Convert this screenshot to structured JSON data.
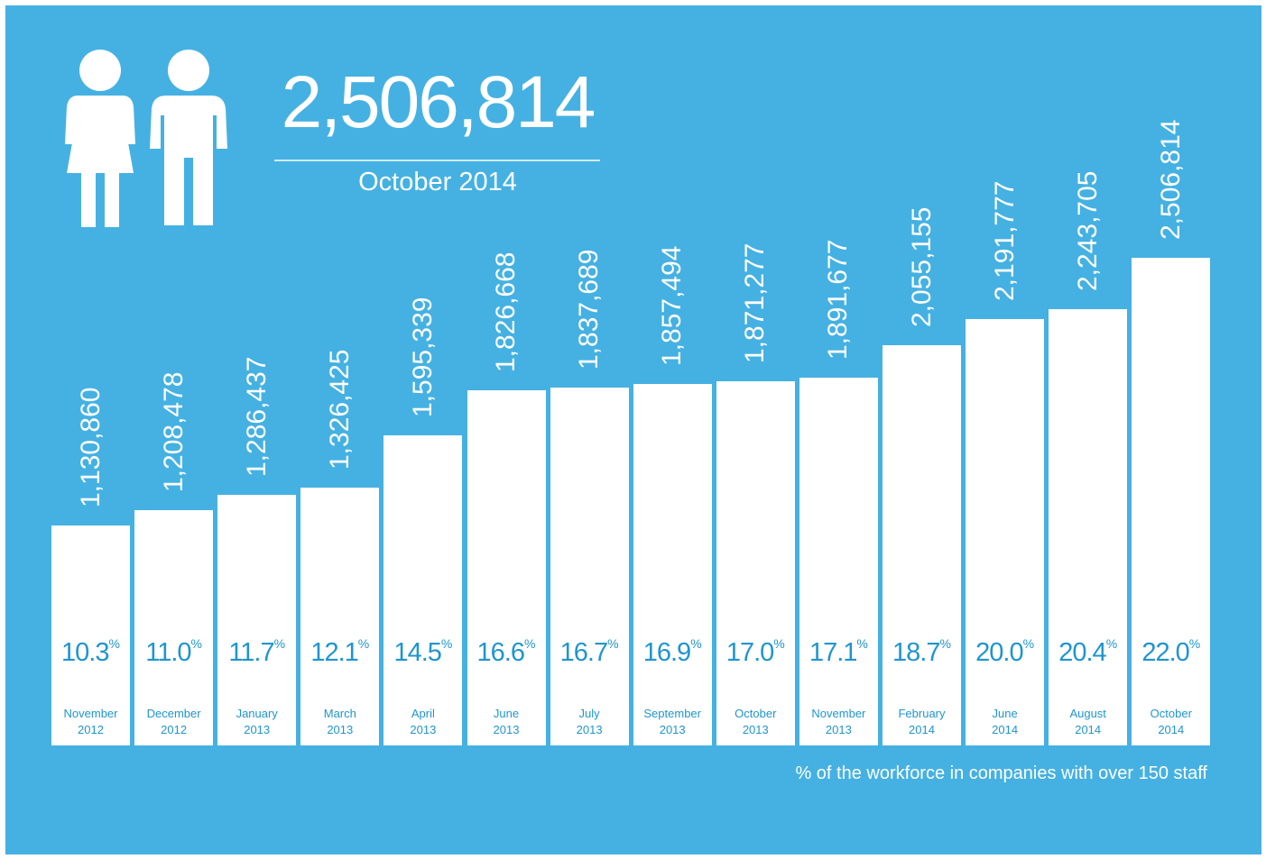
{
  "chart_data": {
    "type": "bar",
    "title": "2,506,814",
    "subtitle": "October 2014",
    "note": "% of the workforce in companies with over 150 staff",
    "categories": [
      "November 2012",
      "December 2012",
      "January 2013",
      "March 2013",
      "April 2013",
      "June 2013",
      "July 2013",
      "September 2013",
      "October 2013",
      "November 2013",
      "February 2014",
      "June 2014",
      "August 2014",
      "October 2014"
    ],
    "values": [
      1130860,
      1208478,
      1286437,
      1326425,
      1595339,
      1826668,
      1837689,
      1857494,
      1871277,
      1891677,
      2055155,
      2191777,
      2243705,
      2506814
    ],
    "value_labels": [
      "1,130,860",
      "1,208,478",
      "1,286,437",
      "1,326,425",
      "1,595,339",
      "1,826,668",
      "1,837,689",
      "1,857,494",
      "1,871,277",
      "1,891,677",
      "2,055,155",
      "2,191,777",
      "2,243,705",
      "2,506,814"
    ],
    "percents": [
      10.3,
      11,
      11.7,
      12.1,
      14.5,
      16.6,
      16.7,
      16.9,
      17,
      17.1,
      18.7,
      20,
      20.4,
      22
    ],
    "percent_labels": [
      "10.3",
      "11.0",
      "11.7",
      "12.1",
      "14.5",
      "16.6",
      "16.7",
      "16.9",
      "17.0",
      "17.1",
      "18.7",
      "20.0",
      "20.4",
      "22.0"
    ],
    "percent_unit": "%",
    "color": "#ffffff",
    "background": "#45b1e2",
    "label_color": "#1f95cf"
  }
}
